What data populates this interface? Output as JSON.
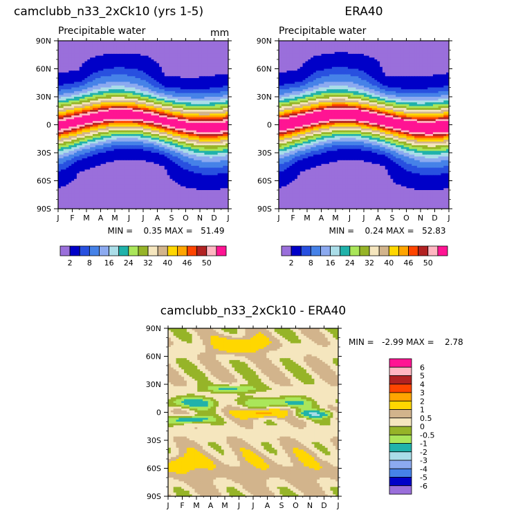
{
  "palette": [
    "#9a6fdb",
    "#0000c8",
    "#2850e0",
    "#4682e8",
    "#8caaf0",
    "#aadde8",
    "#20b2aa",
    "#aae65a",
    "#96b428",
    "#f5e6be",
    "#d2b48c",
    "#ffd700",
    "#ffa500",
    "#ff4500",
    "#b22222",
    "#ffb6c1",
    "#ff1493"
  ],
  "diff_colors": {
    "neg05_0": "#96b428",
    "n1_n05": "#aae65a",
    "n2_n1": "#20b2aa",
    "n3_n2": "#aadde8",
    "zero_05": "#f5e6be",
    "p05_1": "#d2b48c",
    "p1_2": "#ffd700",
    "p2_3": "#ffa500"
  },
  "chart_data": [
    {
      "type": "heatmap",
      "title": "camclubb_n33_2xCk10 (yrs 1-5)",
      "subtitle": "Precipitable water",
      "units": "mm",
      "x_tick_labels": [
        "J",
        "F",
        "M",
        "A",
        "M",
        "J",
        "J",
        "A",
        "S",
        "O",
        "N",
        "D",
        "J"
      ],
      "y_tick_labels": [
        "90N",
        "60N",
        "30N",
        "0",
        "30S",
        "60S",
        "90S"
      ],
      "stats": "MIN =    0.35 MAX =   51.49",
      "min": 0.35,
      "max": 51.49,
      "colorbar_labels": [
        "2",
        "8",
        "16",
        "24",
        "32",
        "40",
        "46",
        "50"
      ],
      "colorbar_levels": [
        2,
        5,
        8,
        12,
        16,
        20,
        24,
        28,
        32,
        36,
        40,
        43,
        46,
        48,
        50,
        52
      ],
      "field": {
        "y_lat_deg": [
          -90,
          90
        ],
        "x_month_index": [
          0,
          12
        ],
        "description_values": "zonal-seasonal precipitable water"
      }
    },
    {
      "type": "heatmap",
      "title": "ERA40",
      "subtitle": "Precipitable water",
      "x_tick_labels": [
        "J",
        "F",
        "M",
        "A",
        "M",
        "J",
        "J",
        "A",
        "S",
        "O",
        "N",
        "D",
        "J"
      ],
      "y_tick_labels": [
        "90N",
        "60N",
        "30N",
        "0",
        "30S",
        "60S",
        "90S"
      ],
      "stats": "MIN =    0.24 MAX =   52.83",
      "min": 0.24,
      "max": 52.83,
      "colorbar_labels": [
        "2",
        "8",
        "16",
        "24",
        "32",
        "40",
        "46",
        "50"
      ],
      "colorbar_levels": [
        2,
        5,
        8,
        12,
        16,
        20,
        24,
        28,
        32,
        36,
        40,
        43,
        46,
        48,
        50,
        52
      ]
    },
    {
      "type": "heatmap",
      "title": "camclubb_n33_2xCk10 - ERA40",
      "x_tick_labels": [
        "J",
        "F",
        "M",
        "A",
        "M",
        "J",
        "J",
        "A",
        "S",
        "O",
        "N",
        "D",
        "J"
      ],
      "y_tick_labels": [
        "90N",
        "60N",
        "30N",
        "0",
        "30S",
        "60S",
        "90S"
      ],
      "stats": "MIN =   -2.99 MAX =    2.78",
      "min": -2.99,
      "max": 2.78,
      "colorbar_labels": [
        "6",
        "5",
        "4",
        "3",
        "2",
        "1",
        "0.5",
        "0",
        "-0.5",
        "-1",
        "-2",
        "-3",
        "-4",
        "-5",
        "-6"
      ],
      "colorbar_colors": [
        "#ff1493",
        "#ffb6c1",
        "#b22222",
        "#ff4500",
        "#ffa500",
        "#ffd700",
        "#d2b48c",
        "#f5e6be",
        "#96b428",
        "#aae65a",
        "#20b2aa",
        "#aadde8",
        "#8caaf0",
        "#4682e8",
        "#0000c8",
        "#9a6fdb"
      ]
    }
  ]
}
